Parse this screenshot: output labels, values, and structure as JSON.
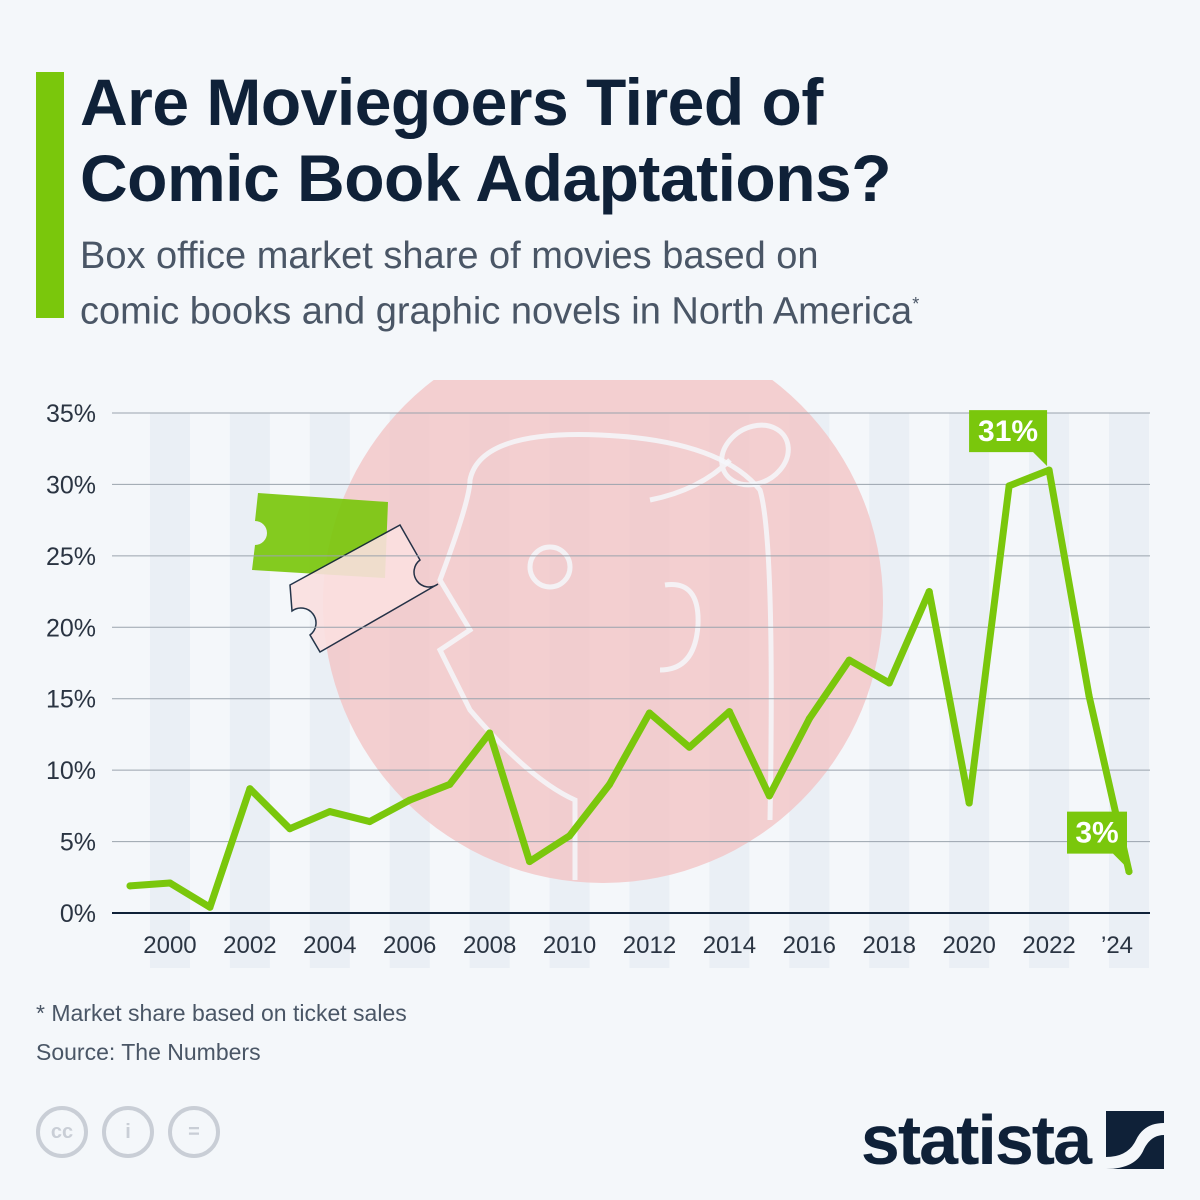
{
  "header": {
    "title_line1": "Are Moviegoers Tired of",
    "title_line2": "Comic Book Adaptations?",
    "subtitle_line1": "Box office market share of movies based on",
    "subtitle_line2": "comic books and graphic novels in North America",
    "subtitle_mark": "*"
  },
  "footer": {
    "note": "* Market share based on ticket sales",
    "source": "Source: The Numbers",
    "brand": "statista",
    "license_icons": [
      "cc-icon",
      "attribution-icon",
      "no-derivatives-icon"
    ]
  },
  "colors": {
    "line": "#7ac70c",
    "accent": "#7ac70c",
    "text": "#0f2138",
    "illustration": "#f3c4c6"
  },
  "chart_data": {
    "type": "line",
    "title": "Are Moviegoers Tired of Comic Book Adaptations?",
    "xlabel": "",
    "ylabel": "",
    "ylim": [
      0,
      35
    ],
    "yticks": [
      0,
      5,
      10,
      15,
      20,
      25,
      30,
      35
    ],
    "ytick_labels": [
      "0%",
      "5%",
      "10%",
      "15%",
      "20%",
      "25%",
      "30%",
      "35%"
    ],
    "x": [
      1999,
      2000,
      2001,
      2002,
      2003,
      2004,
      2005,
      2006,
      2007,
      2008,
      2009,
      2010,
      2011,
      2012,
      2013,
      2014,
      2015,
      2016,
      2017,
      2018,
      2019,
      2020,
      2021,
      2022,
      2023,
      2024
    ],
    "xtick_years": [
      2000,
      2002,
      2004,
      2006,
      2008,
      2010,
      2012,
      2014,
      2016,
      2018,
      2020,
      2022,
      2024
    ],
    "xtick_labels": [
      "2000",
      "2002",
      "2004",
      "2006",
      "2008",
      "2010",
      "2012",
      "2014",
      "2016",
      "2018",
      "2020",
      "2022",
      "’24"
    ],
    "series": [
      {
        "name": "Market share",
        "values": [
          1.9,
          2.1,
          0.4,
          8.7,
          5.9,
          7.1,
          6.4,
          7.9,
          9.0,
          12.6,
          3.6,
          5.4,
          9.0,
          14.0,
          11.6,
          14.1,
          8.2,
          13.6,
          17.7,
          16.1,
          22.5,
          7.7,
          29.9,
          31.0,
          15.2,
          2.9
        ]
      }
    ],
    "annotations": [
      {
        "year": 2022,
        "text": "31%"
      },
      {
        "year": 2024,
        "text": "3%"
      }
    ],
    "grid": true,
    "legend": "none"
  }
}
